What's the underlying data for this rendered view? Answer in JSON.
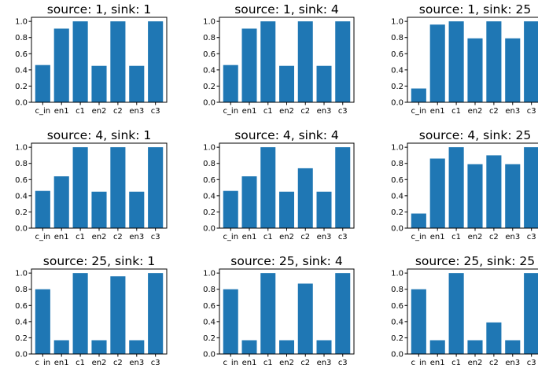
{
  "chart_data": [
    {
      "type": "bar",
      "title": "source: 1, sink: 1",
      "categories": [
        "c_in",
        "en1",
        "c1",
        "en2",
        "c2",
        "en3",
        "c3"
      ],
      "values": [
        0.46,
        0.91,
        1.0,
        0.45,
        1.0,
        0.45,
        1.0
      ],
      "ylim": [
        0,
        1.05
      ],
      "yticks": [
        "0.0",
        "0.2",
        "0.4",
        "0.6",
        "0.8",
        "1.0"
      ],
      "color": "#1f77b4"
    },
    {
      "type": "bar",
      "title": "source: 1, sink: 4",
      "categories": [
        "c_in",
        "en1",
        "c1",
        "en2",
        "c2",
        "en3",
        "c3"
      ],
      "values": [
        0.46,
        0.91,
        1.0,
        0.45,
        1.0,
        0.45,
        1.0
      ],
      "ylim": [
        0,
        1.05
      ],
      "yticks": [
        "0.0",
        "0.2",
        "0.4",
        "0.6",
        "0.8",
        "1.0"
      ],
      "color": "#1f77b4"
    },
    {
      "type": "bar",
      "title": "source: 1, sink: 25",
      "categories": [
        "c_in",
        "en1",
        "c1",
        "en2",
        "c2",
        "en3",
        "c3"
      ],
      "values": [
        0.17,
        0.96,
        1.0,
        0.79,
        1.0,
        0.79,
        1.0
      ],
      "ylim": [
        0,
        1.05
      ],
      "yticks": [
        "0.0",
        "0.2",
        "0.4",
        "0.6",
        "0.8",
        "1.0"
      ],
      "color": "#1f77b4"
    },
    {
      "type": "bar",
      "title": "source: 4, sink: 1",
      "categories": [
        "c_in",
        "en1",
        "c1",
        "en2",
        "c2",
        "en3",
        "c3"
      ],
      "values": [
        0.46,
        0.64,
        1.0,
        0.45,
        1.0,
        0.45,
        1.0
      ],
      "ylim": [
        0,
        1.05
      ],
      "yticks": [
        "0.0",
        "0.2",
        "0.4",
        "0.6",
        "0.8",
        "1.0"
      ],
      "color": "#1f77b4"
    },
    {
      "type": "bar",
      "title": "source: 4, sink: 4",
      "categories": [
        "c_in",
        "en1",
        "c1",
        "en2",
        "c2",
        "en3",
        "c3"
      ],
      "values": [
        0.46,
        0.64,
        1.0,
        0.45,
        0.74,
        0.45,
        1.0
      ],
      "ylim": [
        0,
        1.05
      ],
      "yticks": [
        "0.0",
        "0.2",
        "0.4",
        "0.6",
        "0.8",
        "1.0"
      ],
      "color": "#1f77b4"
    },
    {
      "type": "bar",
      "title": "source: 4, sink: 25",
      "categories": [
        "c_in",
        "en1",
        "c1",
        "en2",
        "c2",
        "en3",
        "c3"
      ],
      "values": [
        0.18,
        0.86,
        1.0,
        0.79,
        0.9,
        0.79,
        1.0
      ],
      "ylim": [
        0,
        1.05
      ],
      "yticks": [
        "0.0",
        "0.2",
        "0.4",
        "0.6",
        "0.8",
        "1.0"
      ],
      "color": "#1f77b4"
    },
    {
      "type": "bar",
      "title": "source: 25, sink: 1",
      "categories": [
        "c_in",
        "en1",
        "c1",
        "en2",
        "c2",
        "en3",
        "c3"
      ],
      "values": [
        0.8,
        0.17,
        1.0,
        0.17,
        0.96,
        0.17,
        1.0
      ],
      "ylim": [
        0,
        1.05
      ],
      "yticks": [
        "0.0",
        "0.2",
        "0.4",
        "0.6",
        "0.8",
        "1.0"
      ],
      "color": "#1f77b4"
    },
    {
      "type": "bar",
      "title": "source: 25, sink: 4",
      "categories": [
        "c_in",
        "en1",
        "c1",
        "en2",
        "c2",
        "en3",
        "c3"
      ],
      "values": [
        0.8,
        0.17,
        1.0,
        0.17,
        0.87,
        0.17,
        1.0
      ],
      "ylim": [
        0,
        1.05
      ],
      "yticks": [
        "0.0",
        "0.2",
        "0.4",
        "0.6",
        "0.8",
        "1.0"
      ],
      "color": "#1f77b4"
    },
    {
      "type": "bar",
      "title": "source: 25, sink: 25",
      "categories": [
        "c_in",
        "en1",
        "c1",
        "en2",
        "c2",
        "en3",
        "c3"
      ],
      "values": [
        0.8,
        0.17,
        1.0,
        0.17,
        0.39,
        0.17,
        1.0
      ],
      "ylim": [
        0,
        1.05
      ],
      "yticks": [
        "0.0",
        "0.2",
        "0.4",
        "0.6",
        "0.8",
        "1.0"
      ],
      "color": "#1f77b4"
    }
  ]
}
